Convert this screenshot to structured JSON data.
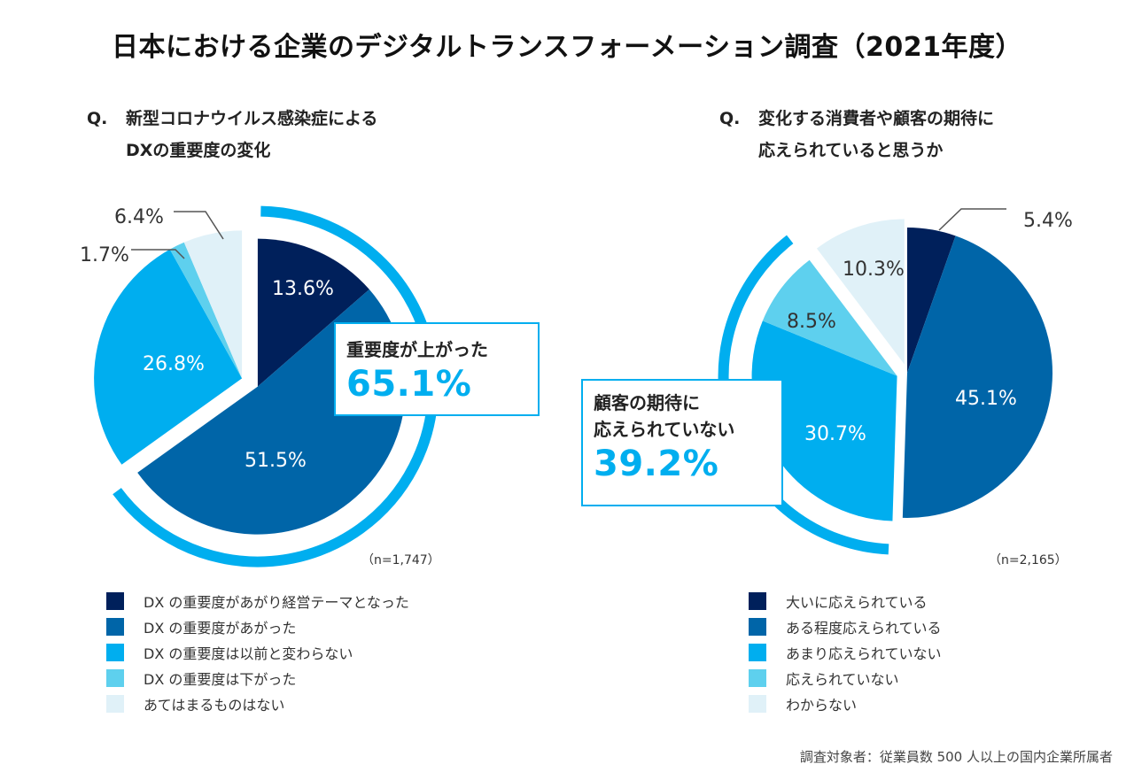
{
  "title": "日本における企業のデジタルトランスフォーメーション調査（2021年度）",
  "colors": {
    "navy": "#00205b",
    "blue": "#0065a8",
    "sky": "#00aeef",
    "light_sky": "#5ed0ee",
    "pale": "#e0f1f8",
    "accent": "#00aeef"
  },
  "chart_data": [
    {
      "type": "pie",
      "title": "Q. 新型コロナウイルス感染症による DXの重要度の変化",
      "question_prefix": "Q.",
      "question_line1": "新型コロナウイルス感染症による",
      "question_line2": "DXの重要度の変化",
      "n_label": "（n=1,747）",
      "start": "12 o'clock, clockwise",
      "slices": [
        {
          "label": "DX の重要度があがり経営テーマとなった",
          "value": 13.6,
          "display": "13.6%",
          "color_key": "navy",
          "label_color": "#ffffff",
          "group": "highlight"
        },
        {
          "label": "DX の重要度があがった",
          "value": 51.5,
          "display": "51.5%",
          "color_key": "blue",
          "label_color": "#ffffff",
          "group": "highlight"
        },
        {
          "label": "DX の重要度は以前と変わらない",
          "value": 26.8,
          "display": "26.8%",
          "color_key": "sky",
          "label_color": "#ffffff",
          "group": "rest"
        },
        {
          "label": "DX の重要度は下がった",
          "value": 1.7,
          "display": "1.7%",
          "color_key": "light_sky",
          "label_color": "#333333",
          "group": "rest",
          "leader": true
        },
        {
          "label": "あてはまるものはない",
          "value": 6.4,
          "display": "6.4%",
          "color_key": "pale",
          "label_color": "#333333",
          "group": "rest",
          "leader": true
        }
      ],
      "callout": {
        "label": "重要度が上がった",
        "value": "65.1%",
        "sum_of": [
          "DX の重要度があがり経営テーマとなった",
          "DX の重要度があがった"
        ]
      },
      "legend_placement": "bottom"
    },
    {
      "type": "pie",
      "title": "Q. 変化する消費者や顧客の期待に 応えられていると思うか",
      "question_prefix": "Q.",
      "question_line1": "変化する消費者や顧客の期待に",
      "question_line2": "応えられていると思うか",
      "n_label": "（n=2,165）",
      "start": "12 o'clock, clockwise",
      "slices": [
        {
          "label": "大いに応えられている",
          "value": 5.4,
          "display": "5.4%",
          "color_key": "navy",
          "label_color": "#333333",
          "group": "rest",
          "leader": true
        },
        {
          "label": "ある程度応えられている",
          "value": 45.1,
          "display": "45.1%",
          "color_key": "blue",
          "label_color": "#ffffff",
          "group": "rest"
        },
        {
          "label": "あまり応えられていない",
          "value": 30.7,
          "display": "30.7%",
          "color_key": "sky",
          "label_color": "#ffffff",
          "group": "highlight"
        },
        {
          "label": "応えられていない",
          "value": 8.5,
          "display": "8.5%",
          "color_key": "light_sky",
          "label_color": "#333333",
          "group": "highlight"
        },
        {
          "label": "わからない",
          "value": 10.3,
          "display": "10.3%",
          "color_key": "pale",
          "label_color": "#333333",
          "group": "other"
        }
      ],
      "callout": {
        "label_line1": "顧客の期待に",
        "label_line2": "応えられていない",
        "value": "39.2%",
        "sum_of": [
          "あまり応えられていない",
          "応えられていない"
        ]
      },
      "legend_placement": "bottom"
    }
  ],
  "footnote": "調査対象者：従業員数 500 人以上の国内企業所属者"
}
